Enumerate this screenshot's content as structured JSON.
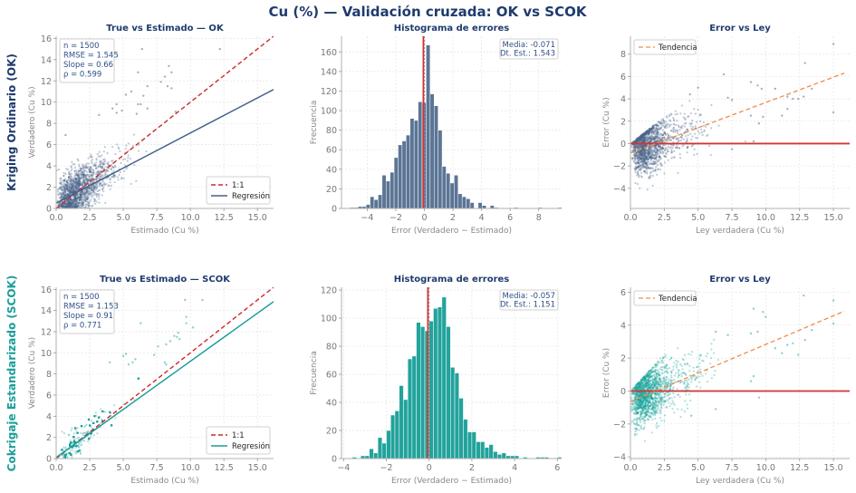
{
  "figure": {
    "suptitle": "Cu (%)  —  Validación cruzada: OK vs SCOK"
  },
  "rows": [
    {
      "label": "Kriging Ordinario (OK)",
      "color": "#1f3b6e"
    },
    {
      "label": "Cokrigaje Estandarizado (SCOK)",
      "color": "#1a9e9a"
    }
  ],
  "colors": {
    "ok_point": "#4a6589",
    "ok_bar": "#5b7595",
    "ok_line": "#45618a",
    "scok_point": "#1aa39c",
    "scok_bar": "#22a39c",
    "scok_line": "#1a9e9a",
    "one_to_one": "#cc2a2a",
    "zero_line": "#d03434",
    "trend": "#f08c4a",
    "title": "#1f3b6e"
  },
  "chart_data": [
    {
      "id": "ok_scatter",
      "type": "scatter",
      "title": "True vs Estimado — OK",
      "xlabel": "Estimado  (Cu %)",
      "ylabel": "Verdadero  (Cu %)",
      "xlim": [
        0,
        16.2
      ],
      "ylim": [
        0,
        16.2
      ],
      "xticks": [
        "0.0",
        "2.5",
        "5.0",
        "7.5",
        "10.0",
        "12.5",
        "15.0"
      ],
      "xtick_values": [
        0,
        2.5,
        5,
        7.5,
        10,
        12.5,
        15
      ],
      "yticks": [
        "0",
        "2",
        "4",
        "6",
        "8",
        "10",
        "12",
        "14",
        "16"
      ],
      "ytick_values": [
        0,
        2,
        4,
        6,
        8,
        10,
        12,
        14,
        16
      ],
      "grid": true,
      "stats": [
        "n  = 1500",
        "RMSE = 1.545",
        "Slope = 0.66",
        "ρ  = 0.599"
      ],
      "n": 1500,
      "rmse": 1.545,
      "slope": 0.66,
      "rho": 0.599,
      "regression": {
        "slope": 0.66,
        "intercept": 0.5
      },
      "legend": {
        "position": "lower-right",
        "entries": [
          "1:1",
          "Regresión"
        ]
      },
      "highlight_points": [
        [
          12.2,
          15.0
        ],
        [
          6.1,
          12.8
        ],
        [
          8.4,
          13.4
        ],
        [
          8.6,
          12.8
        ],
        [
          8.1,
          12.4
        ],
        [
          7.8,
          11.9
        ],
        [
          8.3,
          11.5
        ],
        [
          8.6,
          11.3
        ],
        [
          6.4,
          15.0
        ],
        [
          5.6,
          11.0
        ],
        [
          6.8,
          11.5
        ],
        [
          6.5,
          10.6
        ],
        [
          5.2,
          10.7
        ],
        [
          4.5,
          9.8
        ],
        [
          4.2,
          9.4
        ],
        [
          6.3,
          9.8
        ],
        [
          6.1,
          9.8
        ],
        [
          4.5,
          9.0
        ],
        [
          4.9,
          9.2
        ],
        [
          3.2,
          8.8
        ],
        [
          6.8,
          9.4
        ],
        [
          6.0,
          8.9
        ],
        [
          8.9,
          9.1
        ],
        [
          0.7,
          6.9
        ]
      ],
      "cloud": {
        "seed": 11,
        "n": 1500
      }
    },
    {
      "id": "ok_hist",
      "type": "bar",
      "title": "Histograma de errores",
      "xlabel": "Error  (Verdadero − Estimado)",
      "ylabel": "Frecuencia",
      "xlim": [
        -5.8,
        9.6
      ],
      "ylim": [
        0,
        176
      ],
      "xticks": [
        "−4",
        "−2",
        "0",
        "2",
        "4",
        "6",
        "8"
      ],
      "xtick_values": [
        -4,
        -2,
        0,
        2,
        4,
        6,
        8
      ],
      "yticks": [
        "0",
        "20",
        "40",
        "60",
        "80",
        "100",
        "120",
        "140",
        "160"
      ],
      "ytick_values": [
        0,
        20,
        40,
        60,
        80,
        100,
        120,
        140,
        160
      ],
      "grid": true,
      "bin_start": -5.2,
      "bin_width": 0.28,
      "values": [
        1,
        1,
        2,
        2,
        4,
        12,
        9,
        14,
        34,
        28,
        37,
        52,
        65,
        69,
        75,
        92,
        90,
        109,
        108,
        167,
        117,
        105,
        80,
        43,
        36,
        26,
        34,
        15,
        12,
        10,
        6,
        0,
        6,
        3,
        0,
        3,
        1,
        0,
        0,
        0,
        0,
        1,
        0,
        0,
        0,
        0,
        0,
        1,
        0,
        0,
        0,
        0,
        1
      ],
      "mean_line": -0.071,
      "stats": [
        "Media: -0.071",
        "Dt. Est.: 1.543"
      ]
    },
    {
      "id": "ok_error_vs_ley",
      "type": "scatter",
      "title": "Error vs Ley",
      "xlabel": "Ley verdadera  (Cu %)",
      "ylabel": "Error  (Cu %)",
      "xlim": [
        0,
        16.2
      ],
      "ylim": [
        -5.8,
        9.6
      ],
      "xticks": [
        "0.0",
        "2.5",
        "5.0",
        "7.5",
        "10.0",
        "12.5",
        "15.0"
      ],
      "xtick_values": [
        0,
        2.5,
        5,
        7.5,
        10,
        12.5,
        15
      ],
      "yticks": [
        "−4",
        "−2",
        "0",
        "2",
        "4",
        "6",
        "8"
      ],
      "ytick_values": [
        -4,
        -2,
        0,
        2,
        4,
        6,
        8
      ],
      "grid": true,
      "zero_line": 0,
      "trend": {
        "x": [
          0,
          15.8
        ],
        "y": [
          -0.85,
          6.3
        ]
      },
      "legend": {
        "position": "upper-left",
        "entries": [
          "Tendencia"
        ]
      },
      "highlight_points": [
        [
          15.0,
          8.9
        ],
        [
          12.9,
          7.2
        ],
        [
          15.0,
          2.8
        ],
        [
          6.9,
          6.2
        ],
        [
          8.9,
          5.5
        ],
        [
          9.4,
          5.2
        ],
        [
          9.7,
          4.9
        ],
        [
          10.7,
          4.9
        ],
        [
          13.4,
          4.9
        ],
        [
          11.6,
          4.2
        ],
        [
          12.8,
          4.2
        ],
        [
          12.0,
          4.0
        ],
        [
          12.4,
          4.0
        ],
        [
          11.2,
          2.5
        ],
        [
          9.5,
          1.8
        ],
        [
          9.1,
          0.2
        ],
        [
          7.5,
          -0.5
        ],
        [
          5.0,
          5.0
        ],
        [
          4.4,
          4.4
        ],
        [
          7.2,
          4.1
        ],
        [
          7.5,
          3.9
        ],
        [
          8.9,
          2.5
        ],
        [
          9.8,
          2.4
        ],
        [
          11.6,
          3.1
        ]
      ],
      "cloud": {
        "seed": 23,
        "n": 1500
      }
    },
    {
      "id": "scok_scatter",
      "type": "scatter",
      "title": "True vs Estimado — SCOK",
      "xlabel": "Estimado  (Cu %)",
      "ylabel": "Verdadero  (Cu %)",
      "xlim": [
        0,
        16.2
      ],
      "ylim": [
        0,
        16.2
      ],
      "xticks": [
        "0.0",
        "2.5",
        "5.0",
        "7.5",
        "10.0",
        "12.5",
        "15.0"
      ],
      "xtick_values": [
        0,
        2.5,
        5,
        7.5,
        10,
        12.5,
        15
      ],
      "yticks": [
        "0",
        "2",
        "4",
        "6",
        "8",
        "10",
        "12",
        "14",
        "16"
      ],
      "ytick_values": [
        0,
        2,
        4,
        6,
        8,
        10,
        12,
        14,
        16
      ],
      "grid": true,
      "stats": [
        "n  = 1500",
        "RMSE = 1.153",
        "Slope = 0.91",
        "ρ  = 0.771"
      ],
      "n": 1500,
      "rmse": 1.153,
      "slope": 0.91,
      "rho": 0.771,
      "regression": {
        "slope": 0.91,
        "intercept": 0.1
      },
      "legend": {
        "position": "lower-right",
        "entries": [
          "1:1",
          "Regresión"
        ]
      },
      "highlight_points": [
        [
          9.6,
          15.0
        ],
        [
          10.9,
          15.0
        ],
        [
          6.3,
          12.8
        ],
        [
          9.7,
          13.4
        ],
        [
          9.7,
          12.8
        ],
        [
          10.2,
          12.4
        ],
        [
          9.1,
          11.9
        ],
        [
          8.8,
          11.6
        ],
        [
          9.0,
          11.5
        ],
        [
          9.2,
          11.3
        ],
        [
          8.5,
          11.1
        ],
        [
          8.2,
          10.8
        ],
        [
          7.6,
          10.6
        ],
        [
          7.3,
          9.8
        ],
        [
          5.2,
          9.9
        ],
        [
          5.0,
          9.7
        ],
        [
          5.9,
          9.4
        ],
        [
          5.7,
          9.1
        ],
        [
          4.0,
          9.1
        ],
        [
          8.1,
          9.1
        ],
        [
          8.2,
          8.9
        ],
        [
          5.4,
          8.9
        ]
      ],
      "cloud": {
        "seed": 37,
        "n": 1500
      }
    },
    {
      "id": "scok_hist",
      "type": "bar",
      "title": "Histograma de errores",
      "xlabel": "Error  (Verdadero − Estimado)",
      "ylabel": "Frecuencia",
      "xlim": [
        -4.1,
        6.2
      ],
      "ylim": [
        0,
        122
      ],
      "xticks": [
        "−4",
        "−2",
        "0",
        "2",
        "4",
        "6"
      ],
      "xtick_values": [
        -4,
        -2,
        0,
        2,
        4,
        6
      ],
      "yticks": [
        "0",
        "20",
        "40",
        "60",
        "80",
        "100",
        "120"
      ],
      "ytick_values": [
        0,
        20,
        40,
        60,
        80,
        100,
        120
      ],
      "grid": true,
      "bin_start": -3.8,
      "bin_width": 0.2,
      "values": [
        0,
        1,
        0,
        2,
        2,
        7,
        4,
        15,
        11,
        20,
        31,
        34,
        52,
        42,
        71,
        73,
        97,
        94,
        91,
        98,
        107,
        108,
        115,
        94,
        65,
        61,
        43,
        28,
        19,
        19,
        12,
        12,
        8,
        10,
        5,
        3,
        4,
        2,
        2,
        2,
        0,
        1,
        0,
        0,
        1,
        1,
        1,
        0,
        0,
        1,
        1
      ],
      "mean_line": -0.057,
      "stats": [
        "Media: -0.057",
        "Dt. Est.: 1.151"
      ]
    },
    {
      "id": "scok_error_vs_ley",
      "type": "scatter",
      "title": "Error vs Ley",
      "xlabel": "Ley verdadera  (Cu %)",
      "ylabel": "Error  (Cu %)",
      "xlim": [
        0,
        16.2
      ],
      "ylim": [
        -4.1,
        6.3
      ],
      "xticks": [
        "0.0",
        "2.5",
        "5.0",
        "7.5",
        "10.0",
        "12.5",
        "15.0"
      ],
      "xtick_values": [
        0,
        2.5,
        5,
        7.5,
        10,
        12.5,
        15
      ],
      "yticks": [
        "−4",
        "−2",
        "0",
        "2",
        "4",
        "6"
      ],
      "ytick_values": [
        -4,
        -2,
        0,
        2,
        4,
        6
      ],
      "grid": true,
      "zero_line": 0,
      "trend": {
        "x": [
          0,
          15.8
        ],
        "y": [
          -0.65,
          4.85
        ]
      },
      "legend": {
        "position": "upper-left",
        "entries": [
          "Tendencia"
        ]
      },
      "highlight_points": [
        [
          12.8,
          5.8
        ],
        [
          15.0,
          5.5
        ],
        [
          15.0,
          4.1
        ],
        [
          9.1,
          5.0
        ],
        [
          9.8,
          4.8
        ],
        [
          10.0,
          4.5
        ],
        [
          13.4,
          3.7
        ],
        [
          12.9,
          3.1
        ],
        [
          8.9,
          3.5
        ],
        [
          9.4,
          3.6
        ],
        [
          11.6,
          2.8
        ],
        [
          12.0,
          2.9
        ],
        [
          10.7,
          2.6
        ],
        [
          11.2,
          2.3
        ],
        [
          12.4,
          2.2
        ],
        [
          9.1,
          0.9
        ],
        [
          8.9,
          0.6
        ],
        [
          9.5,
          -0.4
        ],
        [
          6.3,
          3.6
        ],
        [
          7.2,
          3.4
        ],
        [
          6.3,
          -1.1
        ],
        [
          4.5,
          -1.5
        ]
      ],
      "cloud": {
        "seed": 53,
        "n": 1500
      }
    }
  ]
}
